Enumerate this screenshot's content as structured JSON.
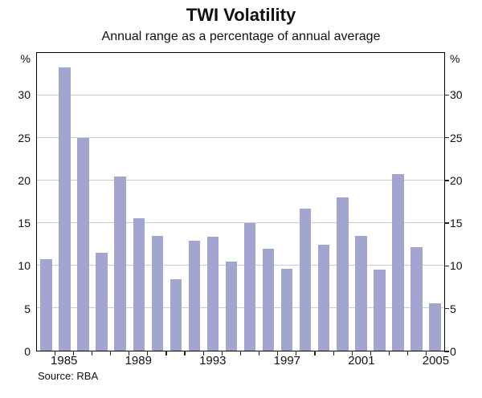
{
  "header": {
    "title": "TWI Volatility",
    "subtitle": "Annual range as a percentage of annual average"
  },
  "footer": {
    "source": "Source: RBA"
  },
  "chart_data": {
    "type": "bar",
    "title": "TWI Volatility",
    "subtitle": "Annual range as a percentage of annual average",
    "unit_label_left": "%",
    "unit_label_right": "%",
    "categories": [
      1984,
      1985,
      1986,
      1987,
      1988,
      1989,
      1990,
      1991,
      1992,
      1993,
      1994,
      1995,
      1996,
      1997,
      1998,
      1999,
      2000,
      2001,
      2002,
      2003,
      2004,
      2005
    ],
    "values": [
      10.8,
      33.3,
      25.0,
      11.5,
      20.5,
      15.6,
      13.5,
      8.4,
      12.9,
      13.4,
      10.5,
      15.0,
      12.0,
      9.6,
      16.7,
      12.5,
      18.0,
      13.5,
      9.5,
      20.8,
      12.2,
      5.6
    ],
    "x_axis_labels": [
      {
        "label": "1985",
        "slot_index": 1
      },
      {
        "label": "1989",
        "slot_index": 5
      },
      {
        "label": "1993",
        "slot_index": 9
      },
      {
        "label": "1997",
        "slot_index": 13
      },
      {
        "label": "2001",
        "slot_index": 17
      },
      {
        "label": "2005",
        "slot_index": 21
      }
    ],
    "y_ticks": [
      0,
      5,
      10,
      15,
      20,
      25,
      30
    ],
    "ylim": [
      0,
      35
    ],
    "grid": true,
    "legend": "none",
    "bar_color": "#a1a5d0",
    "grid_color": "#c9cdd6",
    "source": "Source: RBA"
  }
}
